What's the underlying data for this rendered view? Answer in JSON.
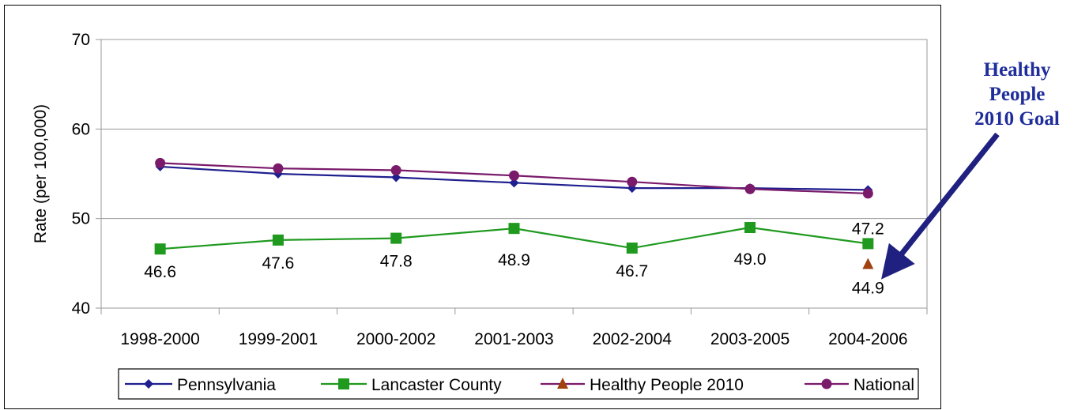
{
  "chart_data": {
    "type": "line",
    "categories": [
      "1998-2000",
      "1999-2001",
      "2000-2002",
      "2001-2003",
      "2002-2004",
      "2003-2005",
      "2004-2006"
    ],
    "ylabel": "Rate (per 100,000)",
    "ylim": [
      40,
      70
    ],
    "yticks": [
      40,
      50,
      60,
      70
    ],
    "grid": true,
    "legend_position": "bottom",
    "series": [
      {
        "name": "Pennsylvania",
        "color": "#1f1f8f",
        "marker": "diamond",
        "values": [
          55.8,
          55.0,
          54.6,
          54.0,
          53.4,
          53.4,
          53.2
        ]
      },
      {
        "name": "Lancaster County",
        "color": "#1f9a1f",
        "marker": "square",
        "values": [
          46.6,
          47.6,
          47.8,
          48.9,
          46.7,
          49.0,
          47.2
        ]
      },
      {
        "name": "Healthy People 2010",
        "color": "#a0410f",
        "marker": "triangle",
        "line_color": "#7a1a6a",
        "values": [
          null,
          null,
          null,
          null,
          null,
          null,
          44.9
        ]
      },
      {
        "name": "National",
        "color": "#7a1a6a",
        "marker": "circle",
        "values": [
          56.2,
          55.6,
          55.4,
          54.8,
          54.1,
          53.3,
          52.8
        ]
      }
    ],
    "data_labels": {
      "lancaster": [
        "46.6",
        "47.6",
        "47.8",
        "48.9",
        "46.7",
        "49.0",
        "47.2"
      ],
      "goal": "44.9"
    }
  },
  "callout": {
    "lines": [
      "Healthy",
      "People",
      "2010 Goal"
    ],
    "color": "#1f2d9a",
    "arrow_color": "#1f2080"
  }
}
